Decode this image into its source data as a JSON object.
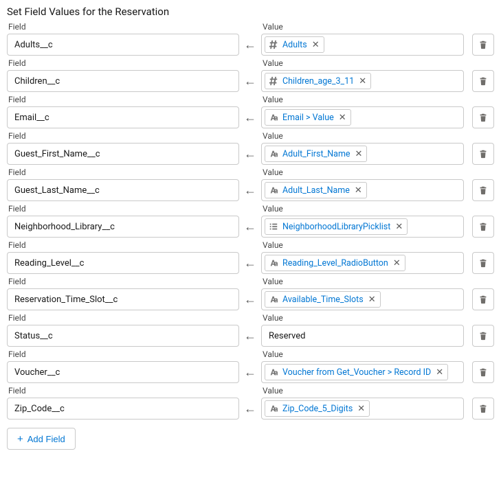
{
  "section_title": "Set Field Values for the Reservation",
  "labels": {
    "field": "Field",
    "value": "Value"
  },
  "add_button_label": "Add Field",
  "icons": {
    "hash": "hash-icon",
    "text": "text-aa-icon",
    "picklist": "list-icon"
  },
  "colors": {
    "link": "#0176d3",
    "border": "#c9c9c9",
    "icon": "#747474"
  },
  "rows": [
    {
      "field": "Adults__c",
      "value_type": "pill",
      "icon": "hash",
      "pill_label": "Adults"
    },
    {
      "field": "Children__c",
      "value_type": "pill",
      "icon": "hash",
      "pill_label": "Children_age_3_11"
    },
    {
      "field": "Email__c",
      "value_type": "pill",
      "icon": "text",
      "pill_label": "Email > Value"
    },
    {
      "field": "Guest_First_Name__c",
      "value_type": "pill",
      "icon": "text",
      "pill_label": "Adult_First_Name"
    },
    {
      "field": "Guest_Last_Name__c",
      "value_type": "pill",
      "icon": "text",
      "pill_label": "Adult_Last_Name"
    },
    {
      "field": "Neighborhood_Library__c",
      "value_type": "pill",
      "icon": "picklist",
      "pill_label": "NeighborhoodLibraryPicklist"
    },
    {
      "field": "Reading_Level__c",
      "value_type": "pill",
      "icon": "text",
      "pill_label": "Reading_Level_RadioButton"
    },
    {
      "field": "Reservation_Time_Slot__c",
      "value_type": "pill",
      "icon": "text",
      "pill_label": "Available_Time_Slots"
    },
    {
      "field": "Status__c",
      "value_type": "plain",
      "plain_value": "Reserved"
    },
    {
      "field": "Voucher__c",
      "value_type": "pill",
      "icon": "text",
      "pill_label": "Voucher from Get_Voucher > Record ID"
    },
    {
      "field": "Zip_Code__c",
      "value_type": "pill",
      "icon": "text",
      "pill_label": "Zip_Code_5_Digits"
    }
  ]
}
